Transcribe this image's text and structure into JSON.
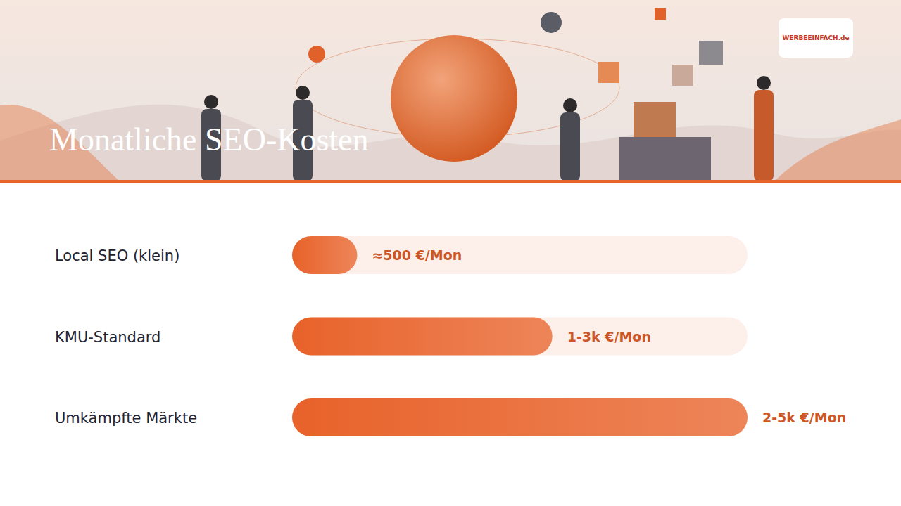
{
  "logo": "WERBEEINFACH.de",
  "chart_data": {
    "type": "bar",
    "title": "Monatliche SEO-Kosten",
    "orientation": "horizontal",
    "categories": [
      "Local SEO (klein)",
      "KMU-Standard",
      "Umkämpfte Märkte"
    ],
    "values": [
      500,
      2000,
      3500
    ],
    "value_labels": [
      "≈500 €/Mon",
      "1-3k €/Mon",
      "2-5k €/Mon"
    ],
    "data_labels": true,
    "color": "#e8622a",
    "xlim": [
      0,
      3500
    ],
    "tick_labels": "y",
    "grid": false
  }
}
